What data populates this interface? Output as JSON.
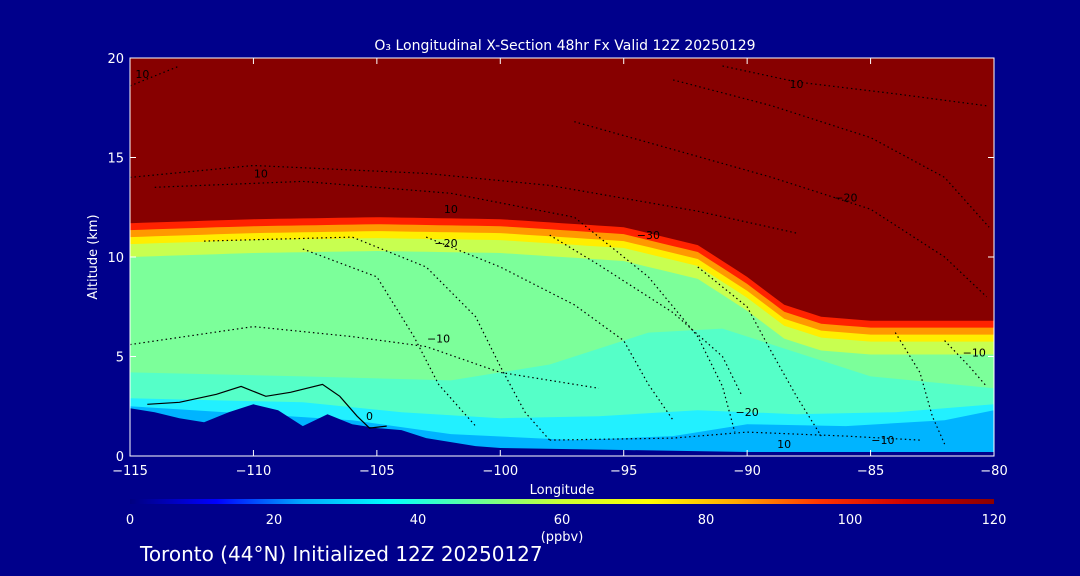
{
  "chart_data": {
    "type": "heatmap",
    "title": "O₃ Longitudinal X-Section 48hr  Fx Valid 12Z 20250129",
    "xlabel": "Longitude",
    "ylabel": "Altitude (km)",
    "xlim": [
      -115,
      -80
    ],
    "ylim": [
      0,
      20
    ],
    "x_ticks": [
      -115,
      -110,
      -105,
      -100,
      -95,
      -90,
      -85,
      -80
    ],
    "x_tick_labels": [
      "−115",
      "−110",
      "−105",
      "−100",
      "−95",
      "−90",
      "−85",
      "−80"
    ],
    "y_ticks": [
      0,
      5,
      10,
      15,
      20
    ],
    "y_tick_labels": [
      "0",
      "5",
      "10",
      "15",
      "20"
    ],
    "colorbar": {
      "min": 0,
      "max": 120,
      "ticks": [
        0,
        20,
        40,
        60,
        80,
        100,
        120
      ],
      "tick_labels": [
        "0",
        "20",
        "40",
        "60",
        "80",
        "100",
        "120"
      ],
      "units": "(ppbv)",
      "colors": [
        "#000080",
        "#0000ff",
        "#00aaff",
        "#00ffff",
        "#66ff99",
        "#ccff33",
        "#ffff00",
        "#ffaa00",
        "#ff3300",
        "#cc0000",
        "#8b0000"
      ]
    },
    "tropopause_altitude_km": [
      [
        -115,
        11.7
      ],
      [
        -110,
        11.9
      ],
      [
        -105,
        12.0
      ],
      [
        -100,
        11.9
      ],
      [
        -95,
        11.5
      ],
      [
        -92,
        10.6
      ],
      [
        -90,
        9.0
      ],
      [
        -88.5,
        7.6
      ],
      [
        -87,
        7.0
      ],
      [
        -85,
        6.8
      ],
      [
        -80,
        6.8
      ]
    ],
    "terrain_km": [
      [
        -115,
        2.4
      ],
      [
        -114,
        2.2
      ],
      [
        -113,
        1.9
      ],
      [
        -112,
        1.7
      ],
      [
        -111,
        2.2
      ],
      [
        -110,
        2.6
      ],
      [
        -109,
        2.3
      ],
      [
        -108,
        1.5
      ],
      [
        -107,
        2.1
      ],
      [
        -106,
        1.6
      ],
      [
        -105,
        1.4
      ],
      [
        -104,
        1.3
      ],
      [
        -103,
        0.9
      ],
      [
        -102,
        0.7
      ],
      [
        -101,
        0.5
      ],
      [
        -100,
        0.4
      ],
      [
        -95,
        0.3
      ],
      [
        -90,
        0.2
      ],
      [
        -85,
        0.2
      ],
      [
        -80,
        0.2
      ]
    ],
    "contour_labels": [
      {
        "text": "10",
        "lon": -114.5,
        "alt": 19.0
      },
      {
        "text": "10",
        "lon": -88.0,
        "alt": 18.5
      },
      {
        "text": "10",
        "lon": -109.7,
        "alt": 14.0
      },
      {
        "text": "10",
        "lon": -102.0,
        "alt": 12.2
      },
      {
        "text": "−20",
        "lon": -102.2,
        "alt": 10.5
      },
      {
        "text": "−30",
        "lon": -94.0,
        "alt": 10.9
      },
      {
        "text": "−20",
        "lon": -86.0,
        "alt": 12.8
      },
      {
        "text": "−10",
        "lon": -102.5,
        "alt": 5.7
      },
      {
        "text": "0",
        "lon": -105.3,
        "alt": 1.8
      },
      {
        "text": "−20",
        "lon": -90.0,
        "alt": 2.0
      },
      {
        "text": "−10",
        "lon": -84.5,
        "alt": 0.6
      },
      {
        "text": "10",
        "lon": -88.5,
        "alt": 0.4
      },
      {
        "text": "−10",
        "lon": -80.8,
        "alt": 5.0
      }
    ]
  },
  "footer_text": "Toronto (44°N) Initialized 12Z 20250127"
}
